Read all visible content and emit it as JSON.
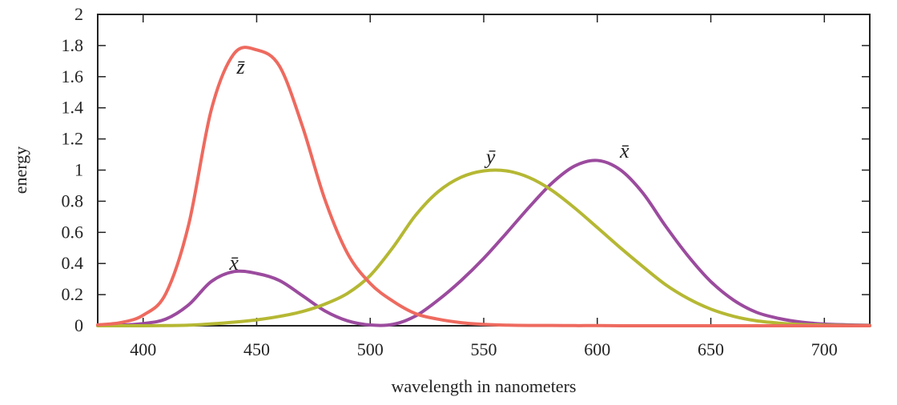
{
  "chart_data": {
    "type": "line",
    "title": "",
    "xlabel": "wavelength in nanometers",
    "ylabel": "energy",
    "xlim": [
      380,
      720
    ],
    "ylim": [
      0,
      2
    ],
    "x_ticks": [
      400,
      450,
      500,
      550,
      600,
      650,
      700
    ],
    "y_ticks": [
      0,
      0.2,
      0.4,
      0.6,
      0.8,
      1,
      1.2,
      1.4,
      1.6,
      1.8,
      2
    ],
    "y_tick_labels": [
      "0",
      "0.2",
      "0.4",
      "0.6",
      "0.8",
      "1",
      "1.2",
      "1.4",
      "1.6",
      "1.8",
      "2"
    ],
    "grid": false,
    "series": [
      {
        "name": "x̄",
        "color": "#9b4b9e",
        "x": [
          380,
          390,
          400,
          410,
          420,
          430,
          440,
          450,
          460,
          470,
          480,
          490,
          500,
          510,
          520,
          530,
          540,
          550,
          560,
          570,
          580,
          590,
          600,
          610,
          620,
          630,
          640,
          650,
          660,
          670,
          680,
          690,
          700,
          710,
          720
        ],
        "y": [
          0.001,
          0.004,
          0.014,
          0.043,
          0.134,
          0.284,
          0.348,
          0.336,
          0.291,
          0.195,
          0.096,
          0.032,
          0.005,
          0.009,
          0.063,
          0.166,
          0.29,
          0.433,
          0.595,
          0.762,
          0.916,
          1.026,
          1.062,
          1.003,
          0.854,
          0.642,
          0.448,
          0.284,
          0.165,
          0.087,
          0.047,
          0.023,
          0.011,
          0.006,
          0.003
        ],
        "labels": [
          {
            "text": "x̄",
            "x": 440,
            "y": 0.36
          },
          {
            "text": "x̄",
            "x": 612,
            "y": 1.08
          }
        ]
      },
      {
        "name": "ȳ",
        "color": "#b5b833",
        "x": [
          380,
          390,
          400,
          410,
          420,
          430,
          440,
          450,
          460,
          470,
          480,
          490,
          500,
          510,
          520,
          530,
          540,
          550,
          560,
          570,
          580,
          590,
          600,
          610,
          620,
          630,
          640,
          650,
          660,
          670,
          680,
          690,
          700,
          710,
          720
        ],
        "y": [
          0.0,
          0.0,
          0.0,
          0.001,
          0.004,
          0.012,
          0.023,
          0.038,
          0.06,
          0.091,
          0.139,
          0.208,
          0.323,
          0.503,
          0.71,
          0.862,
          0.954,
          0.995,
          0.995,
          0.952,
          0.87,
          0.757,
          0.631,
          0.503,
          0.381,
          0.265,
          0.175,
          0.107,
          0.061,
          0.032,
          0.017,
          0.008,
          0.004,
          0.002,
          0.001
        ],
        "labels": [
          {
            "text": "ȳ",
            "x": 553,
            "y": 1.04
          }
        ]
      },
      {
        "name": "z̄",
        "color": "#ee6a5f",
        "x": [
          380,
          390,
          400,
          410,
          420,
          430,
          440,
          450,
          460,
          470,
          480,
          490,
          500,
          510,
          520,
          530,
          540,
          550,
          560,
          570,
          580,
          590,
          600,
          610,
          620,
          630,
          640,
          650,
          660,
          670,
          680,
          690,
          700,
          710,
          720
        ],
        "y": [
          0.006,
          0.02,
          0.068,
          0.207,
          0.646,
          1.386,
          1.747,
          1.772,
          1.669,
          1.288,
          0.813,
          0.465,
          0.272,
          0.158,
          0.078,
          0.042,
          0.02,
          0.009,
          0.004,
          0.002,
          0.002,
          0.001,
          0.001,
          0.0,
          0.0,
          0.0,
          0.0,
          0.0,
          0.0,
          0.0,
          0.0,
          0.0,
          0.0,
          0.0,
          0.0
        ],
        "labels": [
          {
            "text": "z̄",
            "x": 443,
            "y": 1.62
          }
        ]
      }
    ]
  }
}
